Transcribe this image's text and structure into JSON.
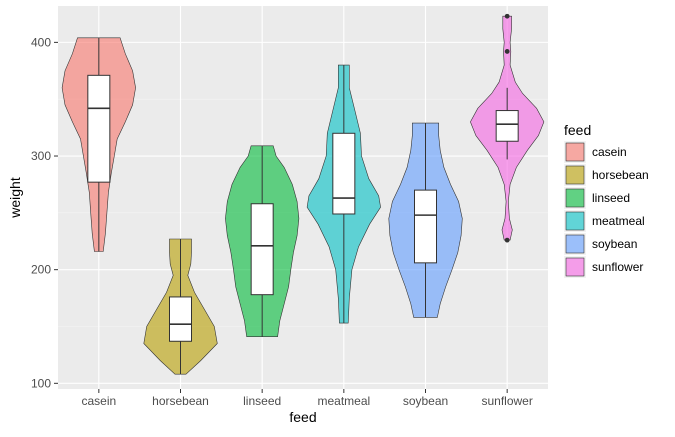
{
  "chart_data": {
    "type": "violin",
    "xlabel": "feed",
    "ylabel": "weight",
    "categories": [
      "casein",
      "horsebean",
      "linseed",
      "meatmeal",
      "soybean",
      "sunflower"
    ],
    "ylim": [
      95,
      432
    ],
    "y_ticks": [
      100,
      200,
      300,
      400
    ],
    "legend": {
      "title": "feed",
      "position": "right"
    },
    "colors": [
      "#F8766D",
      "#B79F00",
      "#00BA38",
      "#00BFC4",
      "#619CFF",
      "#F564E3"
    ],
    "series": [
      {
        "name": "casein",
        "range": [
          216,
          404
        ],
        "box": {
          "min": 216,
          "q1": 277,
          "median": 342,
          "q3": 371,
          "max": 404
        },
        "density": [
          [
            216,
            0.12
          ],
          [
            232,
            0.18
          ],
          [
            250,
            0.22
          ],
          [
            268,
            0.26
          ],
          [
            285,
            0.34
          ],
          [
            300,
            0.42
          ],
          [
            315,
            0.5
          ],
          [
            330,
            0.72
          ],
          [
            345,
            0.92
          ],
          [
            360,
            1.0
          ],
          [
            375,
            0.92
          ],
          [
            390,
            0.72
          ],
          [
            404,
            0.58
          ]
        ],
        "outliers": []
      },
      {
        "name": "horsebean",
        "range": [
          108,
          227
        ],
        "box": {
          "min": 108,
          "q1": 137,
          "median": 152,
          "q3": 176,
          "max": 227
        },
        "density": [
          [
            108,
            0.15
          ],
          [
            120,
            0.55
          ],
          [
            135,
            1.0
          ],
          [
            150,
            0.92
          ],
          [
            165,
            0.65
          ],
          [
            180,
            0.38
          ],
          [
            195,
            0.2
          ],
          [
            205,
            0.28
          ],
          [
            215,
            0.3
          ],
          [
            227,
            0.3
          ]
        ],
        "outliers": []
      },
      {
        "name": "linseed",
        "range": [
          141,
          309
        ],
        "box": {
          "min": 141,
          "q1": 178,
          "median": 221,
          "q3": 258,
          "max": 309
        },
        "density": [
          [
            141,
            0.42
          ],
          [
            155,
            0.48
          ],
          [
            170,
            0.6
          ],
          [
            185,
            0.72
          ],
          [
            200,
            0.78
          ],
          [
            215,
            0.85
          ],
          [
            230,
            0.95
          ],
          [
            245,
            1.0
          ],
          [
            260,
            0.95
          ],
          [
            275,
            0.82
          ],
          [
            290,
            0.6
          ],
          [
            300,
            0.38
          ],
          [
            309,
            0.3
          ]
        ],
        "outliers": []
      },
      {
        "name": "meatmeal",
        "range": [
          153,
          380
        ],
        "box": {
          "min": 153,
          "q1": 249,
          "median": 263,
          "q3": 320,
          "max": 380
        },
        "density": [
          [
            153,
            0.12
          ],
          [
            175,
            0.15
          ],
          [
            200,
            0.22
          ],
          [
            220,
            0.4
          ],
          [
            240,
            0.7
          ],
          [
            255,
            1.0
          ],
          [
            265,
            0.95
          ],
          [
            280,
            0.68
          ],
          [
            300,
            0.48
          ],
          [
            320,
            0.45
          ],
          [
            340,
            0.3
          ],
          [
            360,
            0.15
          ],
          [
            380,
            0.15
          ]
        ],
        "outliers": []
      },
      {
        "name": "soybean",
        "range": [
          158,
          329
        ],
        "box": {
          "min": 158,
          "q1": 206,
          "median": 248,
          "q3": 270,
          "max": 329
        },
        "density": [
          [
            158,
            0.32
          ],
          [
            170,
            0.4
          ],
          [
            185,
            0.55
          ],
          [
            200,
            0.72
          ],
          [
            215,
            0.88
          ],
          [
            230,
            0.97
          ],
          [
            245,
            1.0
          ],
          [
            260,
            0.9
          ],
          [
            275,
            0.68
          ],
          [
            290,
            0.5
          ],
          [
            305,
            0.4
          ],
          [
            318,
            0.36
          ],
          [
            329,
            0.36
          ]
        ],
        "outliers": []
      },
      {
        "name": "sunflower",
        "range": [
          226,
          423
        ],
        "box": {
          "min": 297,
          "q1": 313,
          "median": 328,
          "q3": 340,
          "max": 360
        },
        "density": [
          [
            226,
            0.08
          ],
          [
            235,
            0.14
          ],
          [
            245,
            0.06
          ],
          [
            260,
            0.03
          ],
          [
            275,
            0.08
          ],
          [
            290,
            0.25
          ],
          [
            305,
            0.55
          ],
          [
            318,
            0.85
          ],
          [
            330,
            1.0
          ],
          [
            342,
            0.8
          ],
          [
            355,
            0.42
          ],
          [
            365,
            0.22
          ],
          [
            380,
            0.08
          ],
          [
            392,
            0.1
          ],
          [
            400,
            0.08
          ],
          [
            412,
            0.12
          ],
          [
            423,
            0.12
          ]
        ],
        "outliers": [
          226,
          392,
          423
        ]
      }
    ]
  }
}
